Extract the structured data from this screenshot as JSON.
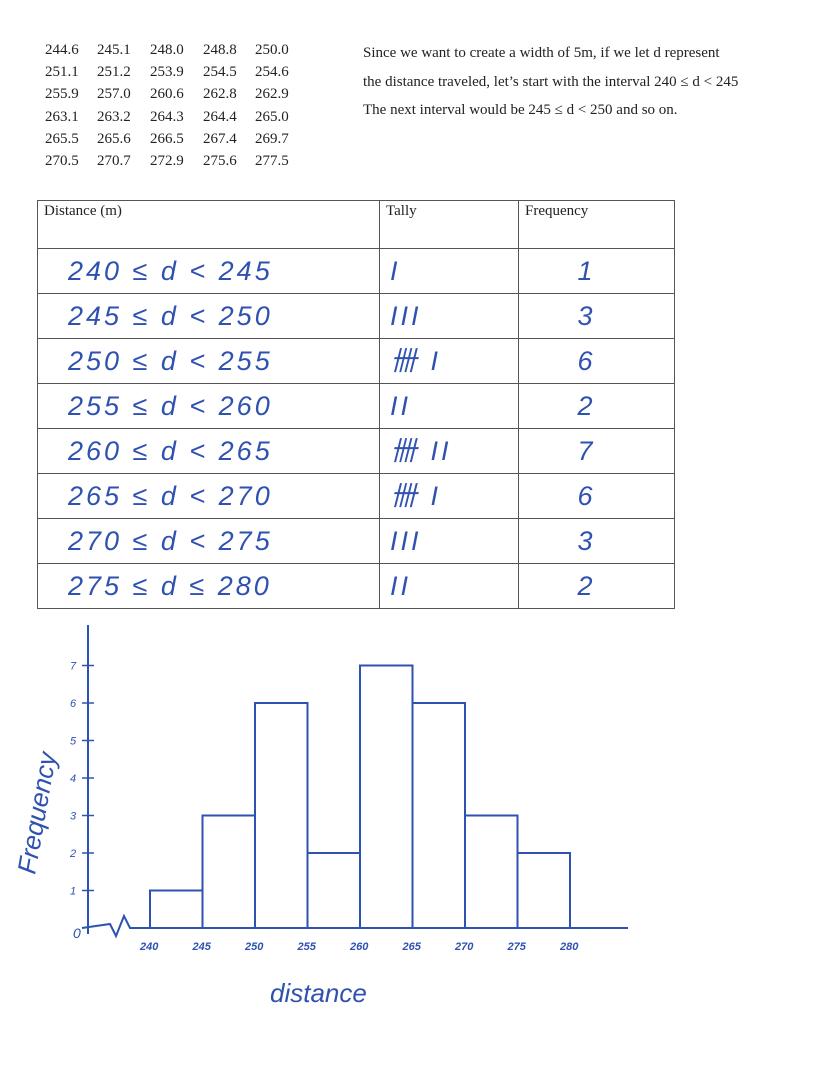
{
  "data_values": [
    [
      "244.6",
      "245.1",
      "248.0",
      "248.8",
      "250.0"
    ],
    [
      "251.1",
      "251.2",
      "253.9",
      "254.5",
      "254.6"
    ],
    [
      "255.9",
      "257.0",
      "260.6",
      "262.8",
      "262.9"
    ],
    [
      "263.1",
      "263.2",
      "264.3",
      "264.4",
      "265.0"
    ],
    [
      "265.5",
      "265.6",
      "266.5",
      "267.4",
      "269.7"
    ],
    [
      "270.5",
      "270.7",
      "272.9",
      "275.6",
      "277.5"
    ]
  ],
  "explanation": [
    "Since we want to create a width of 5m, if we let d represent",
    "the distance traveled, let’s start with the interval  240 ≤ d < 245",
    "The next interval would be  245 ≤ d < 250   and so on."
  ],
  "table": {
    "headers": [
      "Distance (m)",
      "Tally",
      "Frequency"
    ],
    "rows": [
      {
        "interval": "240 ≤ d < 245",
        "tally": "I",
        "frequency": "1"
      },
      {
        "interval": "245 ≤ d < 250",
        "tally": "III",
        "frequency": "3"
      },
      {
        "interval": "250 ≤ d < 255",
        "tally": "卌 I",
        "frequency": "6"
      },
      {
        "interval": "255 ≤ d < 260",
        "tally": "II",
        "frequency": "2"
      },
      {
        "interval": "260 ≤ d < 265",
        "tally": "卌 II",
        "frequency": "7"
      },
      {
        "interval": "265 ≤ d < 270",
        "tally": "卌 I",
        "frequency": "6"
      },
      {
        "interval": "270 ≤ d < 275",
        "tally": "III",
        "frequency": "3"
      },
      {
        "interval": "275 ≤ d ≤ 280",
        "tally": "II",
        "frequency": "2"
      }
    ]
  },
  "chart_data": {
    "type": "bar",
    "title": "",
    "xlabel": "distance",
    "ylabel": "Frequency",
    "x_ticks": [
      "240",
      "245",
      "250",
      "255",
      "260",
      "265",
      "270",
      "275",
      "280"
    ],
    "y_ticks": [
      "1",
      "2",
      "3",
      "4",
      "5",
      "6",
      "7"
    ],
    "origin_label": "0",
    "bins": [
      [
        240,
        245
      ],
      [
        245,
        250
      ],
      [
        250,
        255
      ],
      [
        255,
        260
      ],
      [
        260,
        265
      ],
      [
        265,
        270
      ],
      [
        270,
        275
      ],
      [
        275,
        280
      ]
    ],
    "values": [
      1,
      3,
      6,
      2,
      7,
      6,
      3,
      2
    ],
    "ylim": [
      0,
      7
    ],
    "color": "#2f52b0"
  }
}
